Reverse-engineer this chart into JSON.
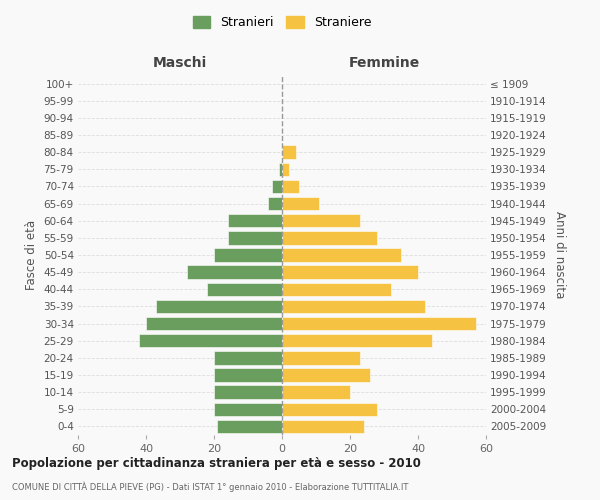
{
  "age_groups": [
    "0-4",
    "5-9",
    "10-14",
    "15-19",
    "20-24",
    "25-29",
    "30-34",
    "35-39",
    "40-44",
    "45-49",
    "50-54",
    "55-59",
    "60-64",
    "65-69",
    "70-74",
    "75-79",
    "80-84",
    "85-89",
    "90-94",
    "95-99",
    "100+"
  ],
  "birth_years": [
    "2005-2009",
    "2000-2004",
    "1995-1999",
    "1990-1994",
    "1985-1989",
    "1980-1984",
    "1975-1979",
    "1970-1974",
    "1965-1969",
    "1960-1964",
    "1955-1959",
    "1950-1954",
    "1945-1949",
    "1940-1944",
    "1935-1939",
    "1930-1934",
    "1925-1929",
    "1920-1924",
    "1915-1919",
    "1910-1914",
    "≤ 1909"
  ],
  "maschi": [
    19,
    20,
    20,
    20,
    20,
    42,
    40,
    37,
    22,
    28,
    20,
    16,
    16,
    4,
    3,
    1,
    0,
    0,
    0,
    0,
    0
  ],
  "femmine": [
    24,
    28,
    20,
    26,
    23,
    44,
    57,
    42,
    32,
    40,
    35,
    28,
    23,
    11,
    5,
    2,
    4,
    0,
    0,
    0,
    0
  ],
  "color_maschi": "#6a9e5e",
  "color_femmine": "#f5c242",
  "title": "Popolazione per cittadinanza straniera per età e sesso - 2010",
  "subtitle": "COMUNE DI CITTÀ DELLA PIEVE (PG) - Dati ISTAT 1° gennaio 2010 - Elaborazione TUTTITALIA.IT",
  "xlabel_left": "Maschi",
  "xlabel_right": "Femmine",
  "ylabel_left": "Fasce di età",
  "ylabel_right": "Anni di nascita",
  "legend_maschi": "Stranieri",
  "legend_femmine": "Straniere",
  "xlim": 60,
  "background_color": "#f9f9f9",
  "grid_color": "#dddddd"
}
